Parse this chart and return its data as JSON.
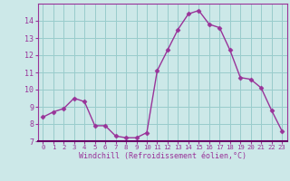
{
  "x": [
    0,
    1,
    2,
    3,
    4,
    5,
    6,
    7,
    8,
    9,
    10,
    11,
    12,
    13,
    14,
    15,
    16,
    17,
    18,
    19,
    20,
    21,
    22,
    23
  ],
  "y": [
    8.4,
    8.7,
    8.9,
    9.5,
    9.3,
    7.9,
    7.9,
    7.3,
    7.2,
    7.2,
    7.5,
    11.1,
    12.3,
    13.5,
    14.4,
    14.6,
    13.8,
    13.6,
    12.3,
    10.7,
    10.6,
    10.1,
    8.8,
    7.6
  ],
  "line_color": "#993399",
  "marker": "D",
  "marker_size": 2.5,
  "bg_color": "#cce8e8",
  "grid_color": "#99cccc",
  "tick_color": "#993399",
  "label_color": "#993399",
  "xlabel": "Windchill (Refroidissement éolien,°C)",
  "ylim": [
    7,
    15
  ],
  "yticks": [
    7,
    8,
    9,
    10,
    11,
    12,
    13,
    14
  ],
  "xlim_min": -0.5,
  "xlim_max": 23.5,
  "xticks": [
    0,
    1,
    2,
    3,
    4,
    5,
    6,
    7,
    8,
    9,
    10,
    11,
    12,
    13,
    14,
    15,
    16,
    17,
    18,
    19,
    20,
    21,
    22,
    23
  ],
  "font_family": "monospace",
  "spine_color": "#993399",
  "bottom_spine_color": "#660066"
}
